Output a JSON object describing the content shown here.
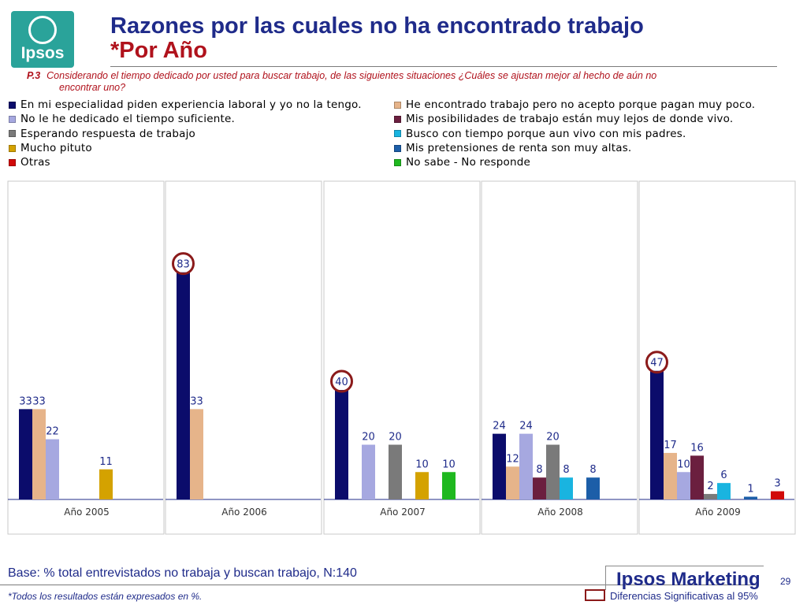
{
  "header": {
    "logo_text": "Ipsos",
    "title_line1": "Razones por las cuales no ha encontrado trabajo",
    "title_line2": "*Por Año"
  },
  "question": {
    "number": "P.3",
    "text": "Considerando el tiempo dedicado por usted  para buscar trabajo, de las siguientes situaciones ¿Cuáles se ajustan mejor al hecho de aún no",
    "text2": "encontrar uno?"
  },
  "legend": {
    "left": [
      {
        "label": "En mi especialidad piden experiencia laboral y yo no la tengo.",
        "color": "#0b0c6b"
      },
      {
        "label": "No le he dedicado el tiempo suficiente.",
        "color": "#a6a8e0"
      },
      {
        "label": "Esperando respuesta de trabajo",
        "color": "#7a7a7a"
      },
      {
        "label": "Mucho pituto",
        "color": "#d4a200"
      },
      {
        "label": "Otras",
        "color": "#d10a0a"
      }
    ],
    "right": [
      {
        "label": "He encontrado trabajo pero no acepto porque pagan muy poco.",
        "color": "#e6b48a"
      },
      {
        "label": "Mis posibilidades de trabajo están muy lejos de donde vivo.",
        "color": "#6b1f3f"
      },
      {
        "label": "Busco con tiempo porque aun vivo con mis padres.",
        "color": "#19b4e0"
      },
      {
        "label": "Mis pretensiones de renta son muy altas.",
        "color": "#1c5ea8"
      },
      {
        "label": "No sabe - No responde",
        "color": "#1fb81f"
      }
    ]
  },
  "chart_data": {
    "type": "bar",
    "ylim": [
      0,
      100
    ],
    "categories": [
      "Año 2005",
      "Año 2006",
      "Año 2007",
      "Año 2008",
      "Año 2009"
    ],
    "series": [
      {
        "name": "En mi especialidad piden experiencia laboral y yo no la tengo.",
        "color": "#0b0c6b",
        "values": [
          33,
          83,
          40,
          24,
          47
        ]
      },
      {
        "name": "He encontrado trabajo pero no acepto porque pagan muy poco.",
        "color": "#e6b48a",
        "values": [
          33,
          33,
          null,
          12,
          17
        ]
      },
      {
        "name": "No le he dedicado el tiempo suficiente.",
        "color": "#a6a8e0",
        "values": [
          22,
          null,
          20,
          24,
          10
        ]
      },
      {
        "name": "Mis posibilidades de trabajo están muy lejos de donde vivo.",
        "color": "#6b1f3f",
        "values": [
          null,
          null,
          null,
          8,
          16
        ]
      },
      {
        "name": "Esperando respuesta de trabajo",
        "color": "#7a7a7a",
        "values": [
          null,
          null,
          20,
          20,
          2
        ]
      },
      {
        "name": "Busco con tiempo porque aun vivo con mis padres.",
        "color": "#19b4e0",
        "values": [
          null,
          null,
          null,
          8,
          6
        ]
      },
      {
        "name": "Mucho pituto",
        "color": "#d4a200",
        "values": [
          11,
          null,
          10,
          null,
          null
        ]
      },
      {
        "name": "Mis pretensiones de renta son muy altas.",
        "color": "#1c5ea8",
        "values": [
          null,
          null,
          null,
          8,
          1
        ]
      },
      {
        "name": "No sabe - No responde",
        "color": "#1fb81f",
        "values": [
          null,
          null,
          10,
          null,
          null
        ]
      },
      {
        "name": "Otras",
        "color": "#d10a0a",
        "values": [
          null,
          null,
          null,
          null,
          3
        ]
      }
    ],
    "significant": [
      {
        "category": "Año 2006",
        "series": 0,
        "value": 83
      },
      {
        "category": "Año 2007",
        "series": 0,
        "value": 40
      },
      {
        "category": "Año 2009",
        "series": 0,
        "value": 47
      }
    ]
  },
  "footer": {
    "base": "Base: % total entrevistados no trabaja y buscan trabajo, N:140",
    "note": "*Todos los resultados están expresados en %.",
    "brand": "Ipsos Marketing",
    "page": "29",
    "significance": "Diferencias Significativas al 95%",
    "significance_color": "#8b1a1a"
  }
}
